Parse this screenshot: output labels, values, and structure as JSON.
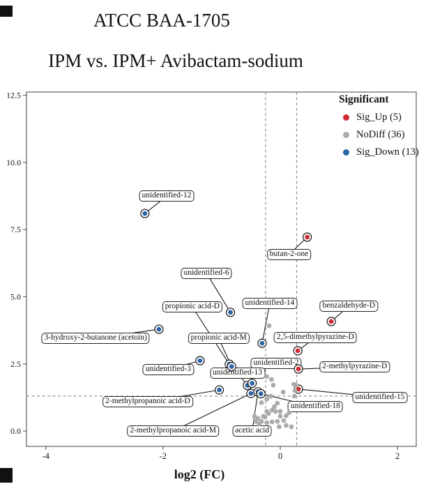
{
  "titles": {
    "line1": "ATCC BAA-1705",
    "line2": "IPM vs. IPM+ Avibactam-sodium"
  },
  "colors": {
    "sig_up": "#cf2a30",
    "nodiff": "#ababab",
    "sig_down": "#2b65a5",
    "threshold_line": "#8a8a8a",
    "axis": "#777777",
    "connector": "#1a1a1a"
  },
  "chart_data": {
    "type": "scatter",
    "title": "ATCC BAA-1705 — IPM vs. IPM+ Avibactam-sodium",
    "xlabel": "log2 (FC)",
    "ylabel": "",
    "xlim": [
      -4.33,
      2.32
    ],
    "ylim": [
      -0.57,
      12.62
    ],
    "grid": false,
    "xticks": [
      {
        "v": -4,
        "label": "-4"
      },
      {
        "v": -2,
        "label": "-2"
      },
      {
        "v": 0,
        "label": "0"
      },
      {
        "v": 2,
        "label": "2"
      }
    ],
    "yticks": [
      {
        "v": 0,
        "label": "0.0"
      },
      {
        "v": 2.5,
        "label": "2.5"
      },
      {
        "v": 5,
        "label": "5.0"
      },
      {
        "v": 7.5,
        "label": "7.5"
      },
      {
        "v": 10,
        "label": "10.0"
      },
      {
        "v": 12.5,
        "label": "12.5"
      }
    ],
    "threshold_lines": {
      "vertical_x": [
        -0.25,
        0.28
      ],
      "horizontal_y": 1.3
    },
    "legend": {
      "title": "Significant",
      "position": "top-right",
      "entries": [
        {
          "label": "Sig_Up (5)",
          "series": "sig_up"
        },
        {
          "label": "NoDiff (36)",
          "series": "nodiff"
        },
        {
          "label": "Sig_Down (13)",
          "series": "sig_down"
        }
      ]
    },
    "series": [
      {
        "name": "Sig_Up",
        "key": "sig_up",
        "ringed": true,
        "points": [
          [
            0.46,
            7.22
          ],
          [
            0.87,
            4.08
          ],
          [
            0.3,
            2.99
          ],
          [
            0.31,
            2.31
          ],
          [
            0.31,
            1.56
          ]
        ]
      },
      {
        "name": "Sig_Down",
        "key": "sig_down",
        "ringed": true,
        "points": [
          [
            -2.31,
            8.1
          ],
          [
            -0.85,
            4.42
          ],
          [
            -2.07,
            3.79
          ],
          [
            -0.31,
            3.27
          ],
          [
            -1.37,
            2.62
          ],
          [
            -0.87,
            2.49
          ],
          [
            -0.83,
            2.4
          ],
          [
            -0.56,
            1.7
          ],
          [
            -0.48,
            1.78
          ],
          [
            -1.04,
            1.53
          ],
          [
            -0.5,
            1.4
          ],
          [
            -0.38,
            1.46
          ],
          [
            -0.33,
            1.39
          ]
        ]
      },
      {
        "name": "NoDiff",
        "key": "nodiff",
        "ringed": false,
        "points": [
          [
            -0.19,
            3.92
          ],
          [
            -0.23,
            2.03
          ],
          [
            -0.15,
            1.92
          ],
          [
            -0.12,
            1.71
          ],
          [
            0.23,
            1.74
          ],
          [
            0.27,
            1.71
          ],
          [
            0.25,
            1.51
          ],
          [
            0.24,
            1.3
          ],
          [
            -0.16,
            1.3
          ],
          [
            -0.23,
            1.19
          ],
          [
            -0.32,
            1.06
          ],
          [
            -0.1,
            0.91
          ],
          [
            -0.14,
            0.78
          ],
          [
            -0.23,
            0.73
          ],
          [
            -0.08,
            0.73
          ],
          [
            0.0,
            0.73
          ],
          [
            -0.2,
            0.65
          ],
          [
            -0.29,
            0.55
          ],
          [
            0.0,
            0.55
          ],
          [
            -0.26,
            0.52
          ],
          [
            0.06,
            0.39
          ],
          [
            -0.05,
            0.36
          ],
          [
            -0.14,
            0.34
          ],
          [
            -0.23,
            0.31
          ],
          [
            -0.32,
            0.36
          ],
          [
            -0.38,
            0.47
          ],
          [
            -0.44,
            0.55
          ],
          [
            0.1,
            0.57
          ],
          [
            0.15,
            0.68
          ],
          [
            0.19,
            0.16
          ],
          [
            0.1,
            0.21
          ],
          [
            -0.02,
            0.16
          ],
          [
            -0.36,
            0.26
          ],
          [
            -0.42,
            0.36
          ],
          [
            -0.05,
            1.04
          ],
          [
            0.05,
            1.45
          ]
        ]
      }
    ],
    "annotations": [
      {
        "text": "unidentified-12",
        "px": -2.31,
        "py": 8.1,
        "lx": -1.94,
        "ly": 8.74
      },
      {
        "text": "butan-2-one",
        "px": 0.46,
        "py": 7.22,
        "lx": 0.15,
        "ly": 6.57
      },
      {
        "text": "unidentified-6",
        "px": -0.85,
        "py": 4.42,
        "lx": -1.26,
        "ly": 5.88
      },
      {
        "text": "propionic acid-D",
        "px": -0.87,
        "py": 2.49,
        "lx": -1.5,
        "ly": 4.62
      },
      {
        "text": "unidentified-14",
        "px": -0.31,
        "py": 3.27,
        "lx": -0.18,
        "ly": 4.74
      },
      {
        "text": "benzaldehyde-D",
        "px": 0.87,
        "py": 4.08,
        "lx": 1.17,
        "ly": 4.65
      },
      {
        "text": "3-hydroxy-2-butanone (acetoin)",
        "px": -2.07,
        "py": 3.79,
        "lx": -3.15,
        "ly": 3.45
      },
      {
        "text": "propionic acid-M",
        "px": -0.83,
        "py": 2.4,
        "lx": -1.05,
        "ly": 3.45
      },
      {
        "text": "2,5-dimethylpyrazine-D",
        "px": 0.3,
        "py": 2.99,
        "lx": 0.6,
        "ly": 3.48
      },
      {
        "text": "unidentified-3",
        "px": -1.37,
        "py": 2.62,
        "lx": -1.91,
        "ly": 2.29
      },
      {
        "text": "unidentified-2",
        "px": 0.31,
        "py": 2.31,
        "lx": -0.07,
        "ly": 2.52
      },
      {
        "text": "2-methylpyrazine-D",
        "px": 0.31,
        "py": 2.31,
        "lx": 1.27,
        "ly": 2.38
      },
      {
        "text": "unidentified-13",
        "px": -0.56,
        "py": 1.7,
        "lx": -0.73,
        "ly": 2.16
      },
      {
        "text": "2-methylpropanoic acid-D",
        "px": -1.04,
        "py": 1.53,
        "lx": -2.26,
        "ly": 1.08
      },
      {
        "text": "unidentified-15",
        "px": 0.31,
        "py": 1.56,
        "lx": 1.7,
        "ly": 1.26
      },
      {
        "text": "unidentified-18",
        "px": -0.33,
        "py": 1.39,
        "lx": 0.6,
        "ly": 0.9
      },
      {
        "text": "2-methylpropanoic acid-M",
        "px": -0.5,
        "py": 1.4,
        "lx": -1.83,
        "ly": 0.0
      },
      {
        "text": "acetic acid",
        "px": -0.38,
        "py": 1.46,
        "lx": -0.48,
        "ly": 0.0
      }
    ]
  }
}
